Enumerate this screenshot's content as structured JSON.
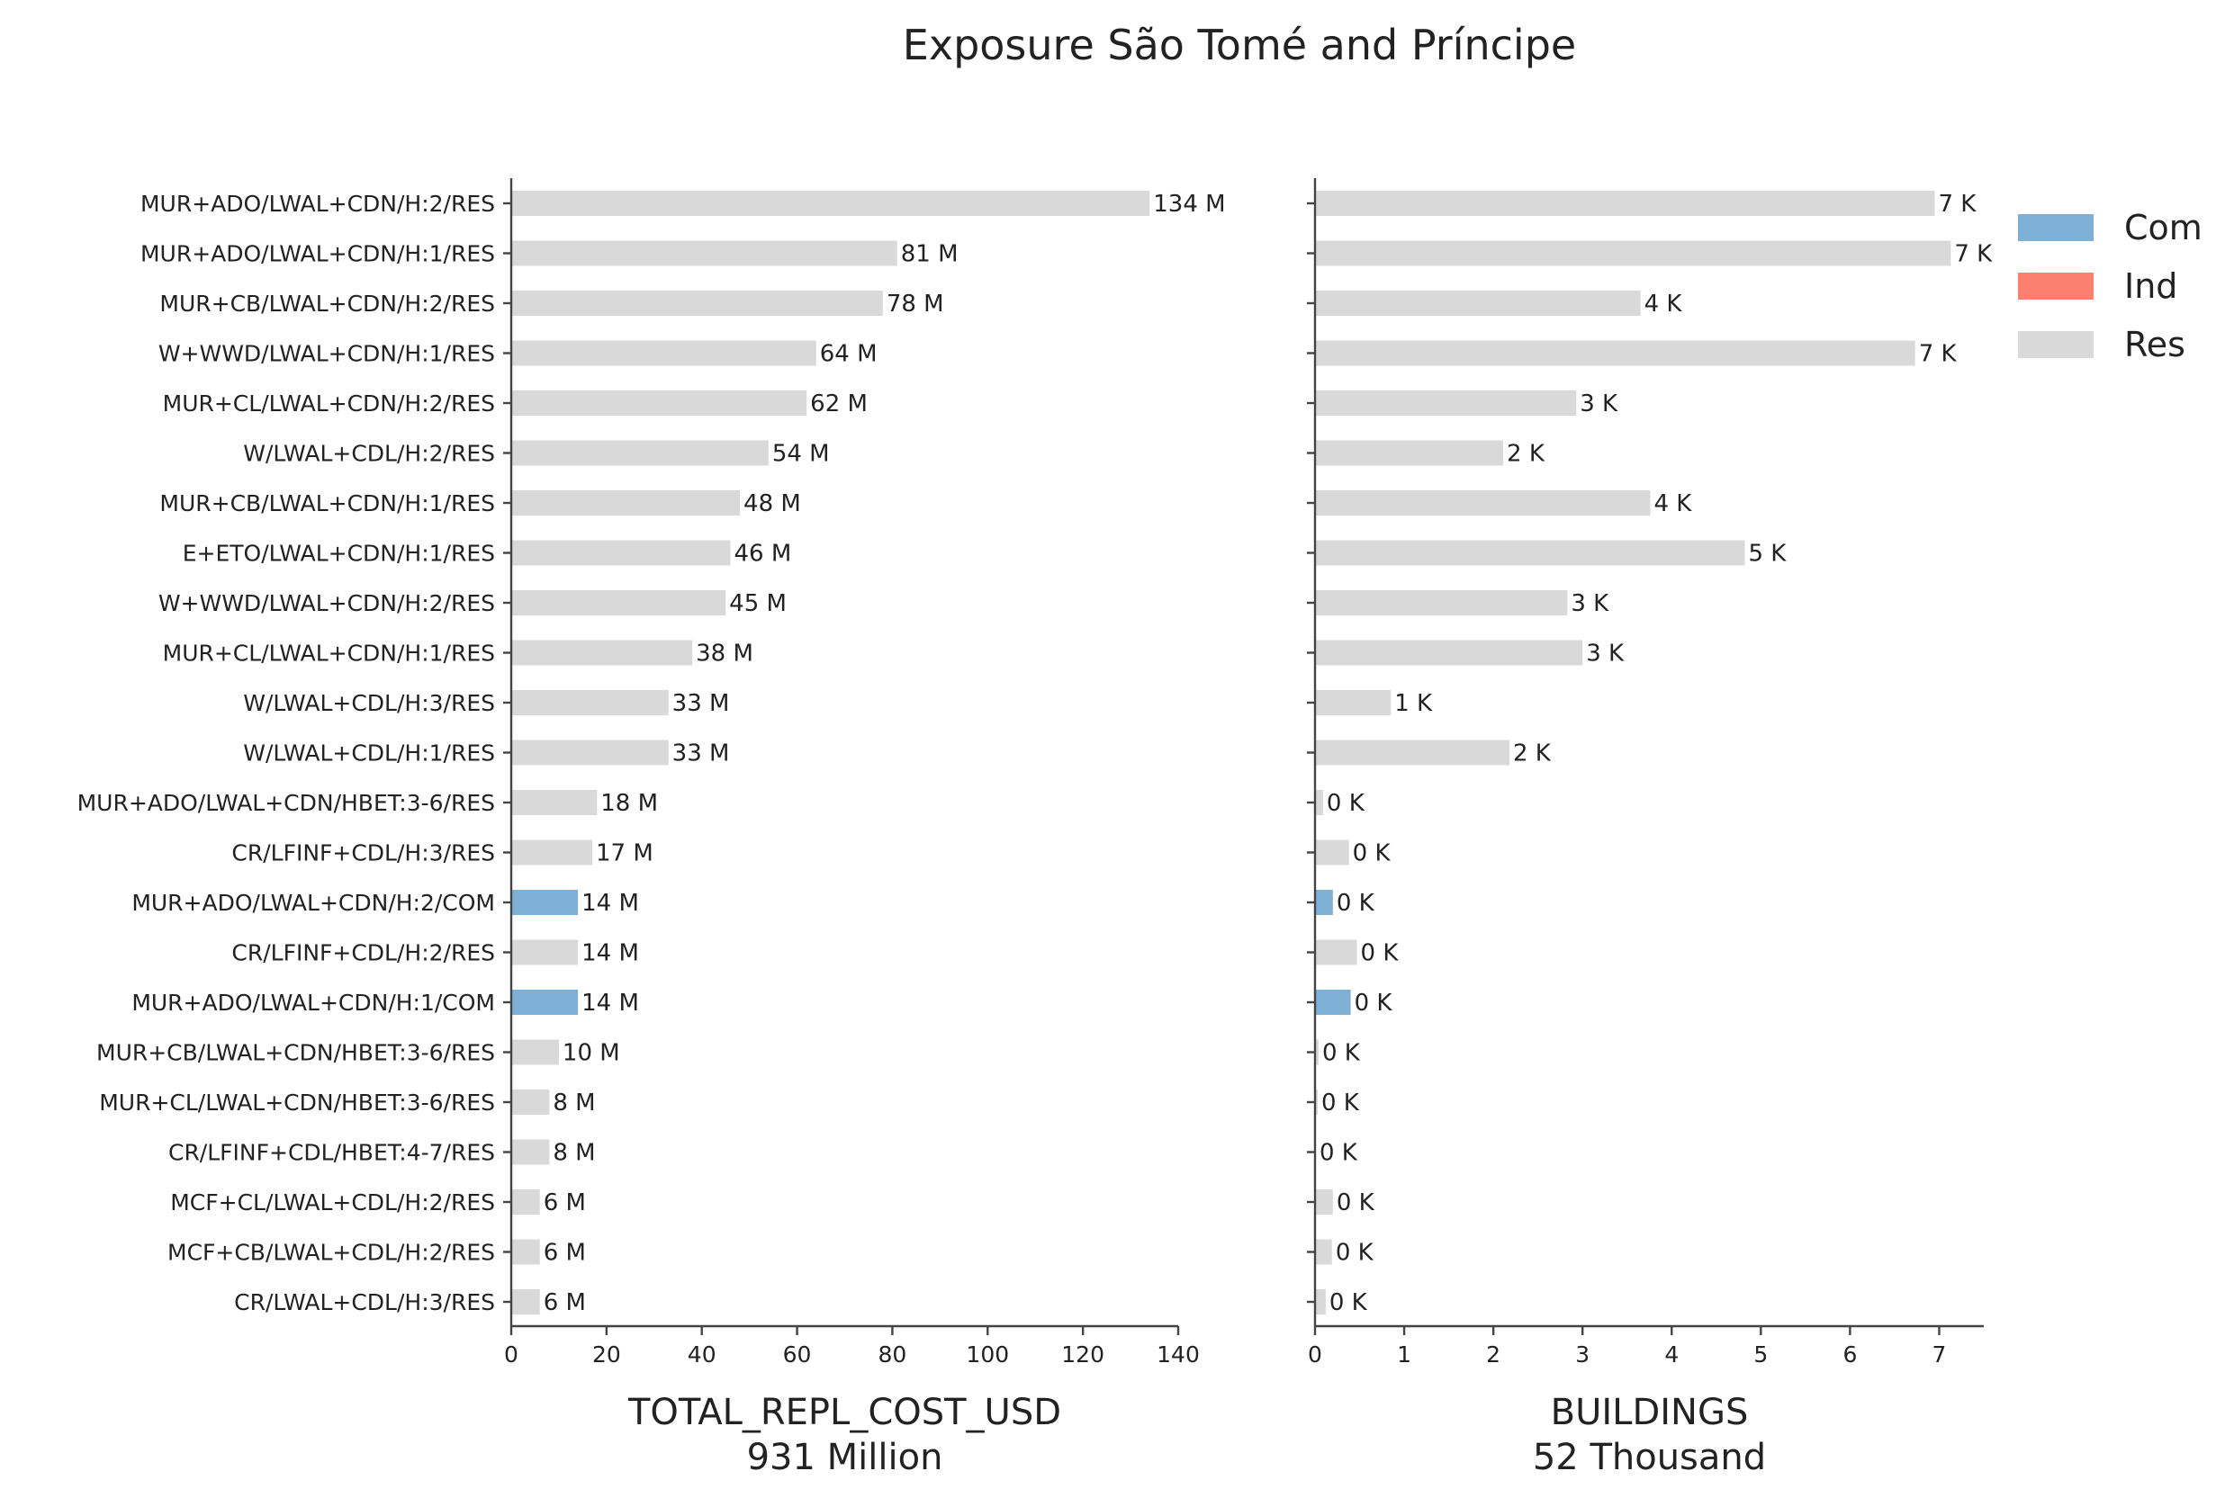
{
  "chart_data": {
    "type": "bar",
    "orientation": "horizontal",
    "title": "Exposure São Tomé and Príncipe",
    "categories": [
      "MUR+ADO/LWAL+CDN/H:2/RES",
      "MUR+ADO/LWAL+CDN/H:1/RES",
      "MUR+CB/LWAL+CDN/H:2/RES",
      "W+WWD/LWAL+CDN/H:1/RES",
      "MUR+CL/LWAL+CDN/H:2/RES",
      "W/LWAL+CDL/H:2/RES",
      "MUR+CB/LWAL+CDN/H:1/RES",
      "E+ETO/LWAL+CDN/H:1/RES",
      "W+WWD/LWAL+CDN/H:2/RES",
      "MUR+CL/LWAL+CDN/H:1/RES",
      "W/LWAL+CDL/H:3/RES",
      "W/LWAL+CDL/H:1/RES",
      "MUR+ADO/LWAL+CDN/HBET:3-6/RES",
      "CR/LFINF+CDL/H:3/RES",
      "MUR+ADO/LWAL+CDN/H:2/COM",
      "CR/LFINF+CDL/H:2/RES",
      "MUR+ADO/LWAL+CDN/H:1/COM",
      "MUR+CB/LWAL+CDN/HBET:3-6/RES",
      "MUR+CL/LWAL+CDN/HBET:3-6/RES",
      "CR/LFINF+CDL/HBET:4-7/RES",
      "MCF+CL/LWAL+CDL/H:2/RES",
      "MCF+CB/LWAL+CDL/H:2/RES",
      "CR/LWAL+CDL/H:3/RES"
    ],
    "occupancy": [
      "Res",
      "Res",
      "Res",
      "Res",
      "Res",
      "Res",
      "Res",
      "Res",
      "Res",
      "Res",
      "Res",
      "Res",
      "Res",
      "Res",
      "Com",
      "Res",
      "Com",
      "Res",
      "Res",
      "Res",
      "Res",
      "Res",
      "Res"
    ],
    "legend": {
      "placement": "top-right",
      "entries": [
        {
          "name": "Com",
          "color": "#7eb0d5"
        },
        {
          "name": "Ind",
          "color": "#fd7f6f"
        },
        {
          "name": "Res",
          "color": "#d9d9d9"
        }
      ]
    },
    "panels": [
      {
        "xlabel": "TOTAL_REPL_COST_USD",
        "total": "931 Million",
        "xlim": [
          0,
          140
        ],
        "xticks": [
          0,
          20,
          40,
          60,
          80,
          100,
          120,
          140
        ],
        "values": [
          134,
          81,
          78,
          64,
          62,
          54,
          48,
          46,
          45,
          38,
          33,
          33,
          18,
          17,
          14,
          14,
          14,
          10,
          8,
          8,
          6,
          6,
          6
        ],
        "labels": [
          "134 M",
          "81 M",
          "78 M",
          "64 M",
          "62 M",
          "54 M",
          "48 M",
          "46 M",
          "45 M",
          "38 M",
          "33 M",
          "33 M",
          "18 M",
          "17 M",
          "14 M",
          "14 M",
          "14 M",
          "10 M",
          "8 M",
          "8 M",
          "6 M",
          "6 M",
          "6 M"
        ]
      },
      {
        "xlabel": "BUILDINGS",
        "total": "52 Thousand",
        "xlim": [
          0,
          7.5
        ],
        "xticks": [
          0,
          1,
          2,
          3,
          4,
          5,
          6,
          7
        ],
        "values": [
          6.95,
          7.13,
          3.65,
          6.73,
          2.93,
          2.11,
          3.76,
          4.82,
          2.83,
          3.0,
          0.85,
          2.18,
          0.09,
          0.38,
          0.2,
          0.47,
          0.4,
          0.04,
          0.03,
          0.01,
          0.2,
          0.19,
          0.12
        ],
        "labels": [
          "7 K",
          "7 K",
          "4 K",
          "7 K",
          "3 K",
          "2 K",
          "4 K",
          "5 K",
          "3 K",
          "3 K",
          "1 K",
          "2 K",
          "0 K",
          "0 K",
          "0 K",
          "0 K",
          "0 K",
          "0 K",
          "0 K",
          "0 K",
          "0 K",
          "0 K",
          "0 K"
        ]
      }
    ]
  }
}
